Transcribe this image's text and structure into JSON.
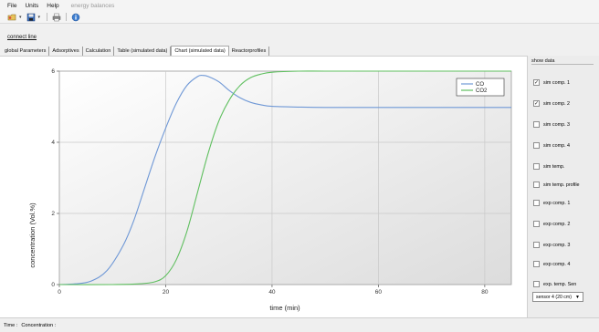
{
  "menu": {
    "file": "File",
    "units": "Units",
    "help": "Help",
    "energy": "energy balances"
  },
  "toolbar": {
    "icons": [
      "open-icon",
      "save-icon",
      "print-icon",
      "info-icon"
    ]
  },
  "connect_label": "connect line",
  "tabs": [
    {
      "label": "global Parameters",
      "active": false
    },
    {
      "label": "Adsorptives",
      "active": false
    },
    {
      "label": "Calculation",
      "active": false
    },
    {
      "label": "Table (simulated data)",
      "active": false
    },
    {
      "label": "Chart (simulated data)",
      "active": true
    },
    {
      "label": "Reactorprofiles",
      "active": false
    }
  ],
  "side": {
    "title": "show data",
    "checkboxes": [
      {
        "label": "sim comp. 1",
        "checked": true
      },
      {
        "label": "sim comp. 2",
        "checked": true
      },
      {
        "label": "sim comp. 3",
        "checked": false
      },
      {
        "label": "sim comp. 4",
        "checked": false
      },
      {
        "label": "sim temp.",
        "checked": false
      },
      {
        "label": "sim temp. profile",
        "checked": false
      },
      {
        "label": "exp comp. 1",
        "checked": false
      },
      {
        "label": "exp comp. 2",
        "checked": false
      },
      {
        "label": "exp comp. 3",
        "checked": false
      },
      {
        "label": "exp comp. 4",
        "checked": false
      },
      {
        "label": "exp. temp. Sen",
        "checked": false
      }
    ],
    "sensor": "sensor 4 (20 cm)"
  },
  "status": {
    "time": "Time :",
    "concentration": "Concentration :"
  },
  "chart_data": {
    "type": "line",
    "xlabel": "time (min)",
    "ylabel": "concentration (Vol.%)",
    "xlim": [
      0,
      85
    ],
    "ylim": [
      0,
      6
    ],
    "xticks": [
      "0",
      "20",
      "40",
      "60",
      "80"
    ],
    "yticks": [
      "0",
      "2",
      "4",
      "6"
    ],
    "grid": true,
    "legend_position": "top-right",
    "series": [
      {
        "name": "CO",
        "color": "#6f98d6",
        "x": [
          0,
          3,
          6,
          9,
          12,
          14,
          16,
          18,
          20,
          22,
          24,
          26,
          27,
          28,
          30,
          32,
          34,
          36,
          38,
          40,
          45,
          50,
          60,
          70,
          80,
          85
        ],
        "y": [
          0,
          0.02,
          0.1,
          0.4,
          1.1,
          1.8,
          2.7,
          3.6,
          4.4,
          5.1,
          5.6,
          5.85,
          5.88,
          5.85,
          5.7,
          5.45,
          5.25,
          5.12,
          5.05,
          5.01,
          4.99,
          4.98,
          4.98,
          4.98,
          4.98,
          4.98
        ]
      },
      {
        "name": "CO2",
        "color": "#5fbf5f",
        "x": [
          0,
          10,
          15,
          18,
          20,
          22,
          24,
          26,
          28,
          30,
          32,
          34,
          36,
          38,
          40,
          45,
          50,
          60,
          70,
          80,
          85
        ],
        "y": [
          0,
          0,
          0.02,
          0.08,
          0.25,
          0.7,
          1.5,
          2.6,
          3.7,
          4.6,
          5.2,
          5.6,
          5.82,
          5.92,
          5.97,
          6,
          6,
          6,
          6,
          6,
          6
        ]
      }
    ]
  }
}
